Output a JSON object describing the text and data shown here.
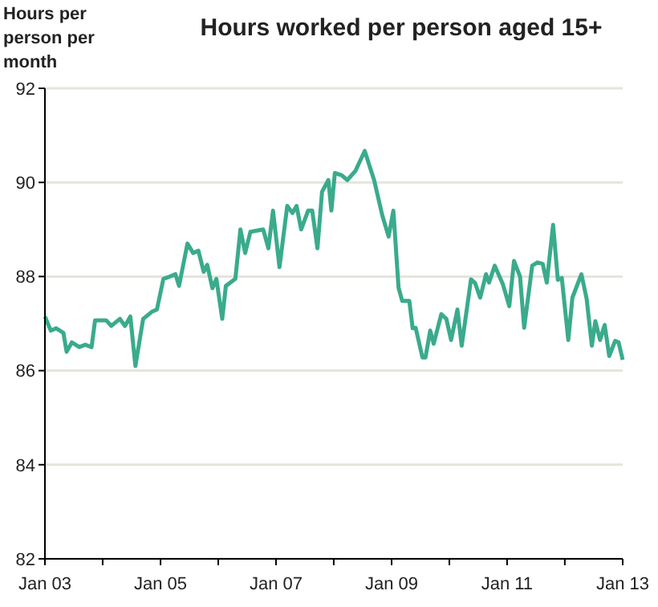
{
  "chart_data": {
    "type": "line",
    "title": "Hours worked per person aged 15+",
    "ylabel": "Hours per person per month",
    "x": [
      "2003-01-01",
      "2003-02-07",
      "2003-03-13",
      "2003-04-28",
      "2003-05-18",
      "2003-06-20",
      "2003-08-07",
      "2003-09-13",
      "2003-10-23",
      "2003-11-14",
      "2004-01-23",
      "2004-02-25",
      "2004-04-19",
      "2004-05-21",
      "2004-06-24",
      "2004-07-26",
      "2004-09-13",
      "2004-11-07",
      "2004-12-09",
      "2005-01-19",
      "2005-03-02",
      "2005-04-05",
      "2005-04-28",
      "2005-06-20",
      "2005-07-26",
      "2005-08-28",
      "2005-10-01",
      "2005-10-23",
      "2005-11-25",
      "2005-12-20",
      "2006-01-26",
      "2006-02-18",
      "2006-04-19",
      "2006-05-21",
      "2006-06-20",
      "2006-07-23",
      "2006-10-12",
      "2006-11-14",
      "2006-12-13",
      "2007-01-23",
      "2007-03-13",
      "2007-04-15",
      "2007-05-11",
      "2007-06-09",
      "2007-07-23",
      "2007-08-18",
      "2007-09-20",
      "2007-10-19",
      "2007-11-28",
      "2007-12-17",
      "2008-01-08",
      "2008-02-21",
      "2008-03-27",
      "2008-05-18",
      "2008-07-15",
      "2008-09-13",
      "2008-11-03",
      "2008-12-13",
      "2009-01-12",
      "2009-02-14",
      "2009-03-09",
      "2009-04-23",
      "2009-05-14",
      "2009-06-02",
      "2009-07-15",
      "2009-08-03",
      "2009-09-02",
      "2009-09-24",
      "2009-11-11",
      "2009-12-13",
      "2010-01-12",
      "2010-02-21",
      "2010-03-20",
      "2010-05-18",
      "2010-06-13",
      "2010-07-15",
      "2010-08-21",
      "2010-09-09",
      "2010-10-15",
      "2010-12-06",
      "2011-01-15",
      "2011-02-14",
      "2011-03-24",
      "2011-04-19",
      "2011-06-09",
      "2011-07-12",
      "2011-08-14",
      "2011-09-09",
      "2011-10-19",
      "2011-11-18",
      "2011-12-13",
      "2012-01-23",
      "2012-02-18",
      "2012-04-15",
      "2012-05-18",
      "2012-06-20",
      "2012-07-12",
      "2012-08-11",
      "2012-09-09",
      "2012-10-08",
      "2012-11-14",
      "2012-12-06",
      "2013-01-01"
    ],
    "series": [
      {
        "color": "#3aab8c",
        "values": [
          87.15,
          86.85,
          86.9,
          86.8,
          86.4,
          86.6,
          86.5,
          86.55,
          86.5,
          87.07,
          87.07,
          86.95,
          87.1,
          86.95,
          87.15,
          86.1,
          87.1,
          87.25,
          87.3,
          87.95,
          88.0,
          88.05,
          87.8,
          88.7,
          88.5,
          88.55,
          88.1,
          88.25,
          87.75,
          87.95,
          87.1,
          87.8,
          87.95,
          89.0,
          88.5,
          88.95,
          89.0,
          88.6,
          89.4,
          88.2,
          89.5,
          89.35,
          89.5,
          89.0,
          89.4,
          89.4,
          88.6,
          89.8,
          90.05,
          89.4,
          90.2,
          90.15,
          90.05,
          90.25,
          90.67,
          90.04,
          89.3,
          88.85,
          89.4,
          87.76,
          87.48,
          87.48,
          86.9,
          86.91,
          86.28,
          86.28,
          86.85,
          86.57,
          87.2,
          87.1,
          86.65,
          87.3,
          86.53,
          87.94,
          87.86,
          87.55,
          88.05,
          87.87,
          88.23,
          87.83,
          87.37,
          88.33,
          88.0,
          86.91,
          88.23,
          88.3,
          88.27,
          87.87,
          89.1,
          87.93,
          87.97,
          86.65,
          87.55,
          88.05,
          87.53,
          86.53,
          87.05,
          86.65,
          86.97,
          86.31,
          86.63,
          86.6,
          86.23
        ]
      }
    ],
    "xlim": [
      "2003-01",
      "2013-01"
    ],
    "xticks": [
      {
        "value": "2003-01",
        "label": "Jan 03"
      },
      {
        "value": "2004-01",
        "label": null
      },
      {
        "value": "2005-01",
        "label": "Jan 05"
      },
      {
        "value": "2006-01",
        "label": null
      },
      {
        "value": "2007-01",
        "label": "Jan 07"
      },
      {
        "value": "2008-01",
        "label": null
      },
      {
        "value": "2009-01",
        "label": "Jan 09"
      },
      {
        "value": "2010-01",
        "label": null
      },
      {
        "value": "2011-01",
        "label": "Jan 11"
      },
      {
        "value": "2012-01",
        "label": null
      },
      {
        "value": "2013-01",
        "label": "Jan 13"
      }
    ],
    "ylim": [
      82,
      92
    ],
    "yticks": [
      82,
      84,
      86,
      88,
      90,
      92
    ],
    "grid": "y"
  }
}
